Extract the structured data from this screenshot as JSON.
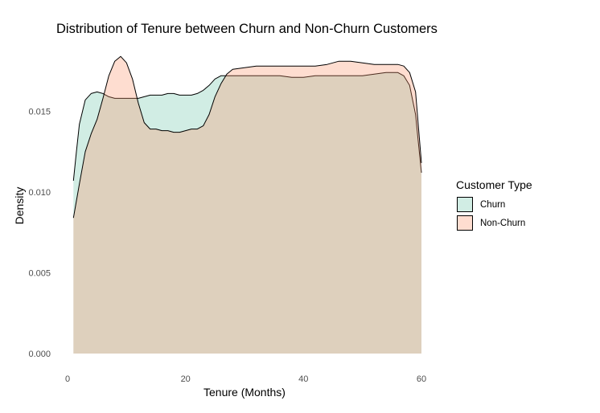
{
  "chart_data": {
    "type": "area",
    "title": "Distribution of Tenure between Churn and Non-Churn Customers",
    "xlabel": "Tenure (Months)",
    "ylabel": "Density",
    "xlim": [
      0,
      60
    ],
    "ylim": [
      0,
      0.019
    ],
    "x_ticks": [
      "0",
      "20",
      "40",
      "60"
    ],
    "y_ticks": [
      "0.000",
      "0.005",
      "0.010",
      "0.015"
    ],
    "grid": false,
    "legend": {
      "title": "Customer Type",
      "position": "right"
    },
    "series": [
      {
        "name": "Churn",
        "color": "#66c2a5",
        "x": [
          1,
          1.5,
          2,
          3,
          4,
          5,
          6,
          7,
          8,
          9,
          10,
          11,
          12,
          13,
          14,
          15,
          16,
          17,
          18,
          19,
          20,
          21,
          22,
          23,
          24,
          25,
          26,
          27,
          28,
          30,
          32,
          34,
          36,
          38,
          40,
          42,
          44,
          46,
          48,
          50,
          52,
          54,
          55,
          56,
          57,
          58,
          59,
          59.5,
          60
        ],
        "values": [
          0.0107,
          0.0125,
          0.0142,
          0.0157,
          0.0161,
          0.0162,
          0.0161,
          0.0159,
          0.0158,
          0.0158,
          0.0158,
          0.0158,
          0.0158,
          0.0159,
          0.016,
          0.016,
          0.016,
          0.0161,
          0.0161,
          0.016,
          0.016,
          0.016,
          0.0161,
          0.0163,
          0.0166,
          0.017,
          0.0172,
          0.0172,
          0.0172,
          0.0172,
          0.0172,
          0.0172,
          0.0172,
          0.0171,
          0.0171,
          0.0172,
          0.0172,
          0.0172,
          0.0172,
          0.0172,
          0.0173,
          0.0174,
          0.0174,
          0.0174,
          0.0172,
          0.0166,
          0.0148,
          0.013,
          0.0112
        ]
      },
      {
        "name": "Non-Churn",
        "color": "#fc8d62",
        "x": [
          1,
          2,
          3,
          4,
          5,
          6,
          7,
          8,
          9,
          10,
          11,
          12,
          13,
          14,
          15,
          16,
          17,
          18,
          19,
          20,
          21,
          22,
          23,
          24,
          25,
          26,
          27,
          28,
          30,
          32,
          34,
          36,
          38,
          40,
          42,
          44,
          46,
          48,
          50,
          52,
          54,
          56,
          57,
          58,
          59,
          59.5,
          60
        ],
        "values": [
          0.0084,
          0.0105,
          0.0125,
          0.0136,
          0.0145,
          0.0158,
          0.0172,
          0.0181,
          0.0184,
          0.018,
          0.017,
          0.0155,
          0.0143,
          0.0139,
          0.0139,
          0.0138,
          0.0138,
          0.0137,
          0.0137,
          0.0138,
          0.0139,
          0.0139,
          0.0141,
          0.0148,
          0.0159,
          0.0167,
          0.0173,
          0.0176,
          0.0177,
          0.0178,
          0.0178,
          0.0178,
          0.0178,
          0.0178,
          0.0178,
          0.0179,
          0.0181,
          0.0181,
          0.018,
          0.0179,
          0.0179,
          0.0179,
          0.0178,
          0.0174,
          0.0162,
          0.014,
          0.0118
        ]
      }
    ]
  }
}
